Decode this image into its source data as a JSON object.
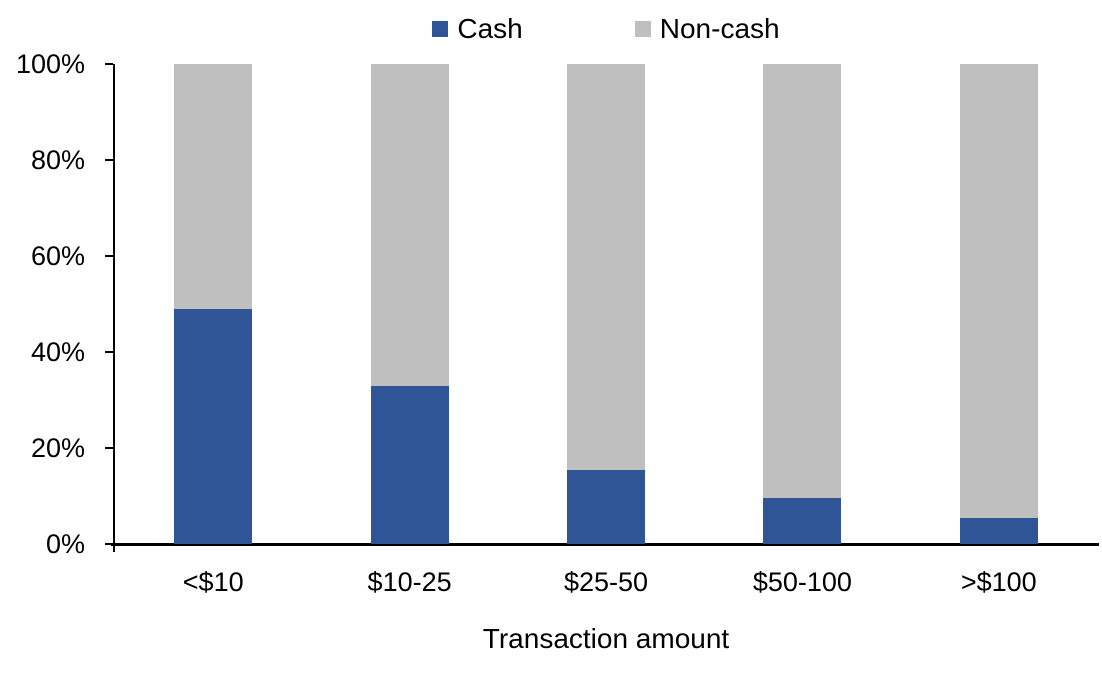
{
  "chart_data": {
    "type": "bar",
    "stacked": true,
    "percent_stacked": true,
    "title": "",
    "xlabel": "Transaction amount",
    "ylabel": "",
    "categories": [
      "<$10",
      "$10-25",
      "$25-50",
      "$50-100",
      ">$100"
    ],
    "series": [
      {
        "name": "Cash",
        "color": "#2F5596",
        "values": [
          49,
          33,
          15.5,
          9.5,
          5.5
        ]
      },
      {
        "name": "Non-cash",
        "color": "#BFBFBF",
        "values": [
          51,
          67,
          84.5,
          90.5,
          94.5
        ]
      }
    ],
    "ylim": [
      0,
      100
    ],
    "yticks": [
      {
        "value": 0,
        "label": "0%"
      },
      {
        "value": 20,
        "label": "20%"
      },
      {
        "value": 40,
        "label": "40%"
      },
      {
        "value": 60,
        "label": "60%"
      },
      {
        "value": 80,
        "label": "80%"
      },
      {
        "value": 100,
        "label": "100%"
      }
    ],
    "legend_position": "top",
    "grid": false,
    "axis_color": "#000000",
    "background_color": "#FFFFFF"
  }
}
